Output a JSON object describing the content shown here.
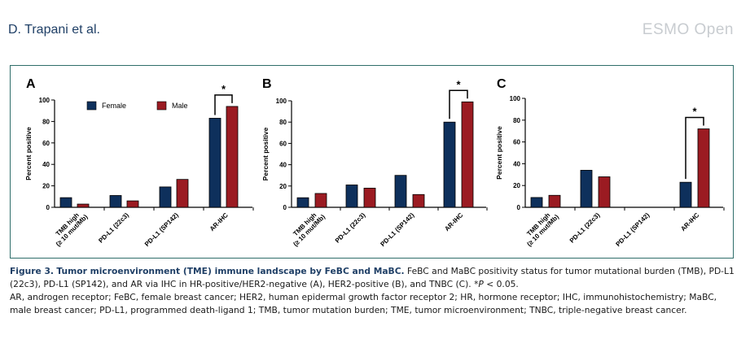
{
  "header": {
    "authors": "D. Trapani et al.",
    "journal": "ESMO Open"
  },
  "colors": {
    "female": "#0e305c",
    "male": "#9b1b22",
    "frame": "#2f6e6a",
    "caption_accent": "#1f3f66"
  },
  "legend": {
    "female": "Female",
    "male": "Male"
  },
  "caption": {
    "label": "Figure 3.",
    "title": "Tumor microenvironment (TME) immune landscape by FeBC and MaBC.",
    "body": " FeBC and MaBC positivity status for tumor mutational burden (TMB), PD-L1 (22c3), PD-L1 (SP142), and AR via IHC in HR-positive/HER2-negative (A), HER2-positive (B), and TNBC (C). *",
    "p_italic": "P",
    "p_rest": " < 0.05.",
    "abbrev": "AR, androgen receptor; FeBC, female breast cancer; HER2, human epidermal growth factor receptor 2; HR, hormone receptor; IHC, immunohistochemistry; MaBC, male breast cancer; PD-L1, programmed death-ligand 1; TMB, tumor mutation burden; TME, tumor microenvironment; TNBC, triple-negative breast cancer."
  },
  "chart_data": [
    {
      "type": "bar",
      "panel": "A",
      "categories": [
        "TMB high\n(≥ 10 mut/Mb)",
        "PD-L1 (22c3)",
        "PD-L1 (SP142)",
        "AR-IHC"
      ],
      "series": [
        {
          "name": "Female",
          "values": [
            9,
            11,
            19,
            83
          ]
        },
        {
          "name": "Male",
          "values": [
            3,
            6,
            26,
            94
          ]
        }
      ],
      "ylabel": "Percent positive",
      "yticks": [
        "0",
        "20",
        "40",
        "60",
        "80",
        "100"
      ],
      "ylim": [
        0,
        100
      ],
      "significance": [
        {
          "category": "AR-IHC",
          "label": "*"
        }
      ]
    },
    {
      "type": "bar",
      "panel": "B",
      "categories": [
        "TMB high\n(≥ 10 mut/Mb)",
        "PD-L1 (22c3)",
        "PD-L1 (SP142)",
        "AR-IHC"
      ],
      "series": [
        {
          "name": "Female",
          "values": [
            9,
            21,
            30,
            80
          ]
        },
        {
          "name": "Male",
          "values": [
            13,
            18,
            12,
            99
          ]
        }
      ],
      "ylabel": "Percent positive",
      "yticks": [
        "0",
        "20",
        "40",
        "60",
        "80",
        "100"
      ],
      "ylim": [
        0,
        100
      ],
      "significance": [
        {
          "category": "AR-IHC",
          "label": "*"
        }
      ]
    },
    {
      "type": "bar",
      "panel": "C",
      "categories": [
        "TMB high\n(≥ 10 mut/Mb)",
        "PD-L1 (22c3)",
        "PD-L1 (SP142)",
        "AR-IHC"
      ],
      "series": [
        {
          "name": "Female",
          "values": [
            9,
            34,
            0,
            23
          ]
        },
        {
          "name": "Male",
          "values": [
            11,
            28,
            0,
            72
          ]
        }
      ],
      "ylabel": "Percent positive",
      "yticks": [
        "0",
        "20",
        "40",
        "60",
        "80",
        "100"
      ],
      "ylim": [
        0,
        100
      ],
      "significance": [
        {
          "category": "AR-IHC",
          "label": "*"
        }
      ]
    }
  ]
}
